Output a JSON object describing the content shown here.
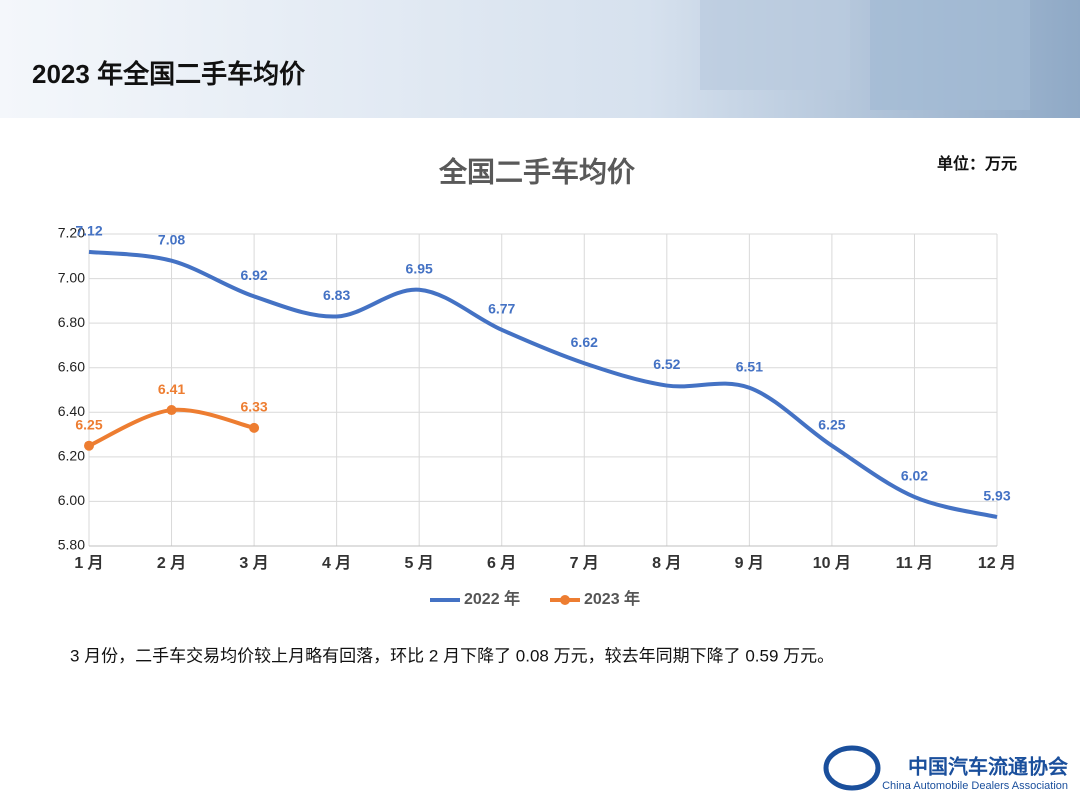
{
  "header": {
    "title": "2023 年全国二手车均价"
  },
  "chart_data": {
    "type": "line",
    "title": "全国二手车均价",
    "unit": "单位：万元",
    "categories": [
      "1 月",
      "2 月",
      "3 月",
      "4 月",
      "5 月",
      "6 月",
      "7 月",
      "8 月",
      "9 月",
      "10 月",
      "11 月",
      "12 月"
    ],
    "series": [
      {
        "name": "2022 年",
        "color": "#4472c4",
        "values": [
          7.12,
          7.08,
          6.92,
          6.83,
          6.95,
          6.77,
          6.62,
          6.52,
          6.51,
          6.25,
          6.02,
          5.93
        ]
      },
      {
        "name": "2023 年",
        "color": "#ed7d31",
        "values": [
          6.25,
          6.41,
          6.33,
          null,
          null,
          null,
          null,
          null,
          null,
          null,
          null,
          null
        ]
      }
    ],
    "ylim": [
      5.8,
      7.2
    ],
    "yticks": [
      {
        "value": 5.8,
        "label": "5.80"
      },
      {
        "value": 6,
        "label": "6.00"
      },
      {
        "value": 6.2,
        "label": "6.20"
      },
      {
        "value": 6.4,
        "label": "6.40"
      },
      {
        "value": 6.6,
        "label": "6.60"
      },
      {
        "value": 6.8,
        "label": "6.80"
      },
      {
        "value": 7,
        "label": "7.00"
      },
      {
        "value": 7.2,
        "label": "7.20"
      }
    ],
    "grid": true,
    "legend": "bottom"
  },
  "caption": "3 月份，二手车交易均价较上月略有回落，环比 2 月下降了 0.08 万元，较去年同期下降了 0.59 万元。",
  "footer": {
    "org": "中国汽车流通协会",
    "org_en": "China Automobile Dealers Association"
  }
}
